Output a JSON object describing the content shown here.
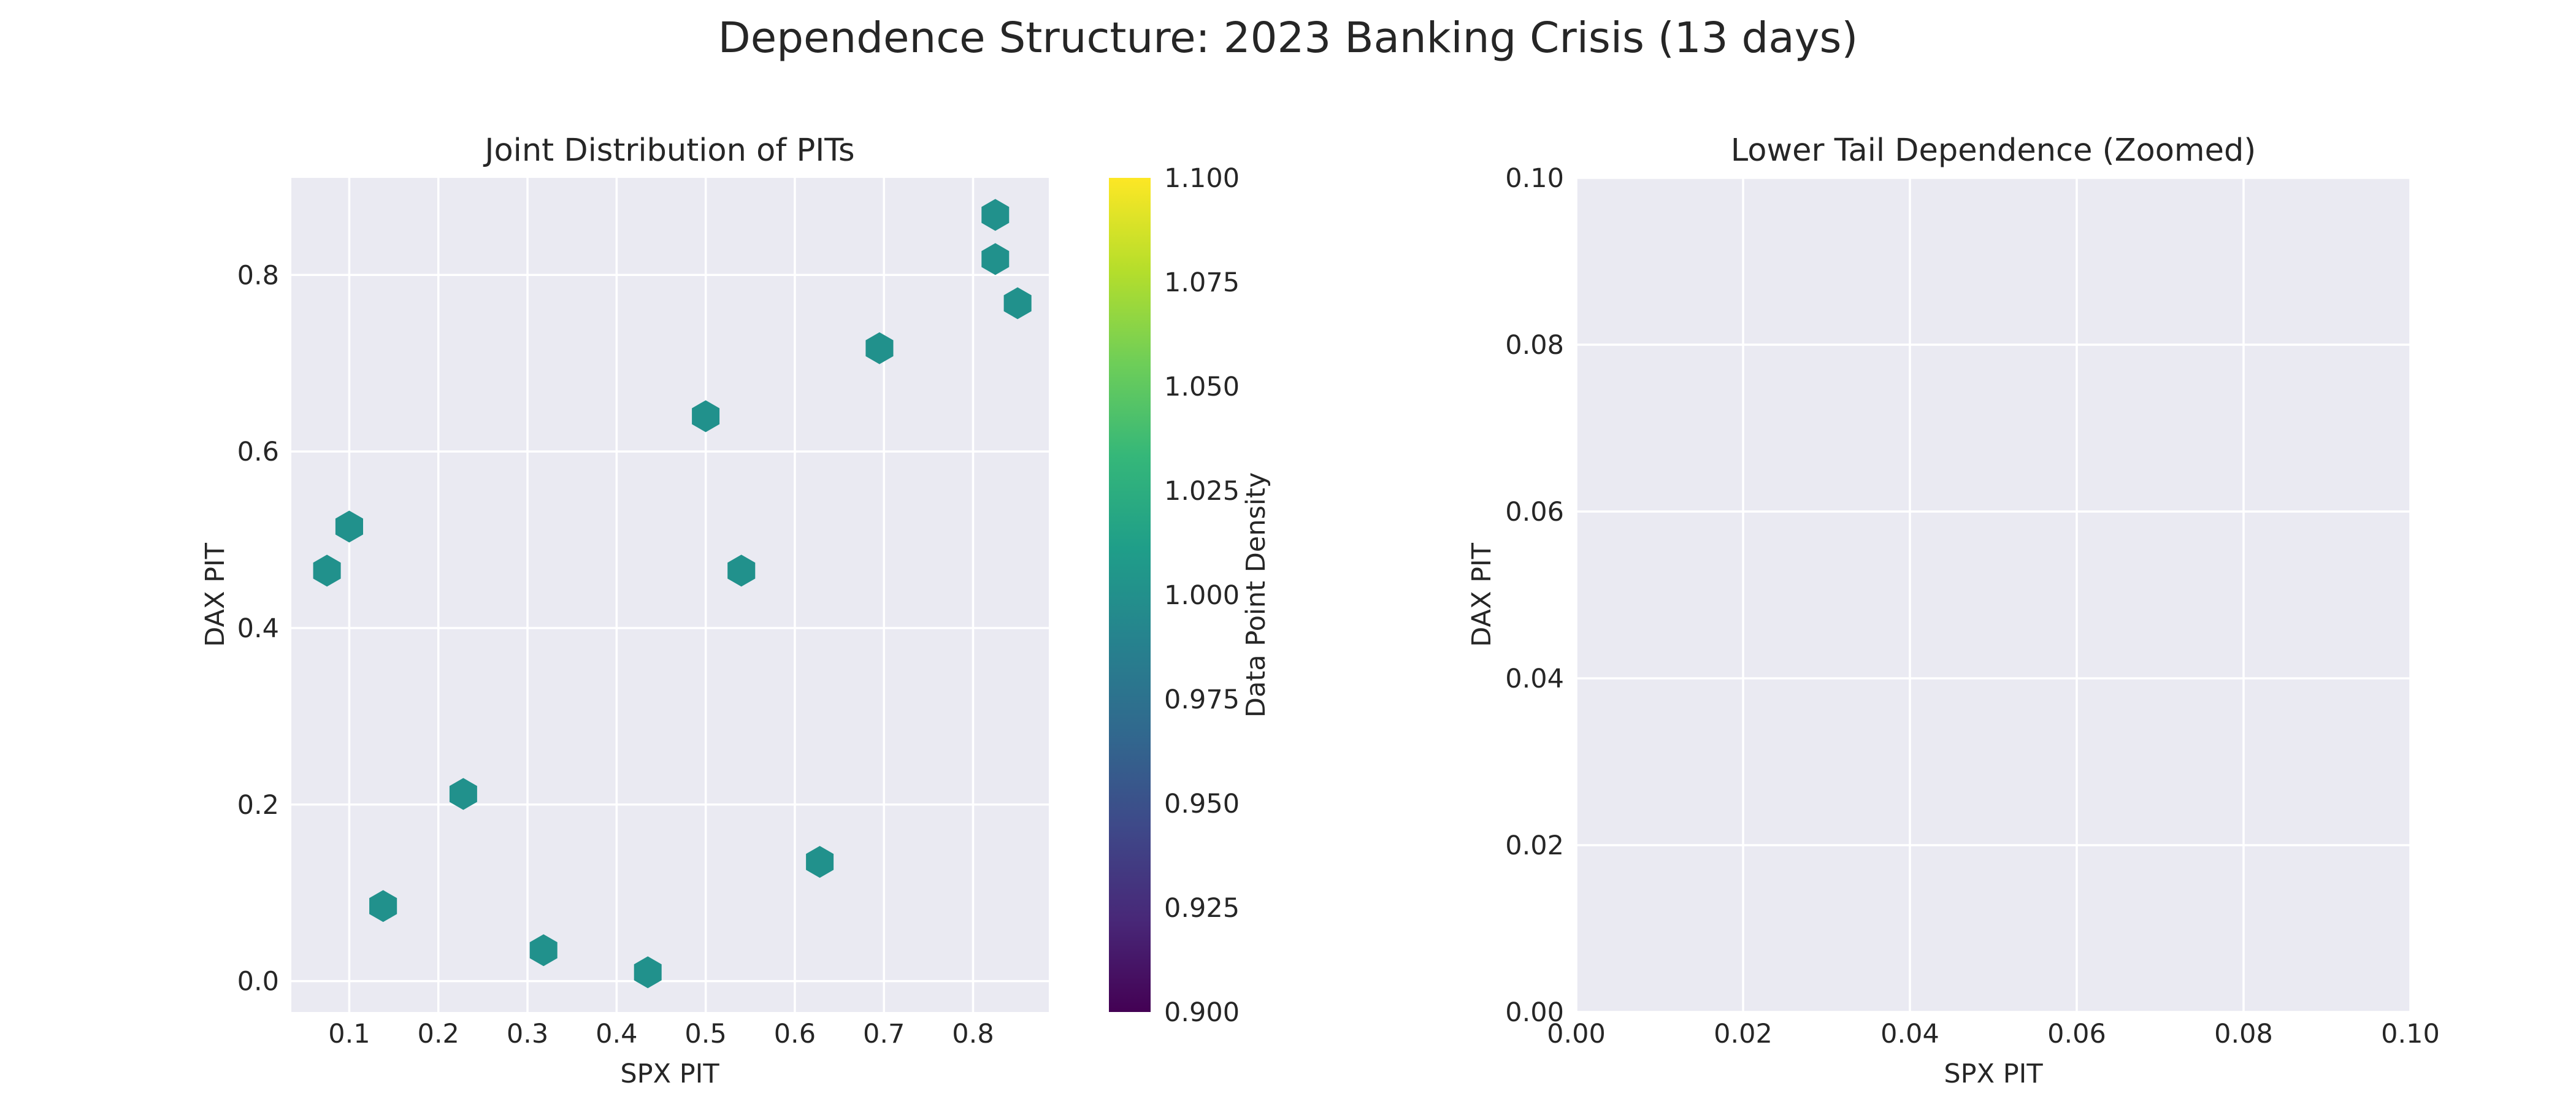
{
  "suptitle": "Dependence Structure: 2023 Banking Crisis (13 days)",
  "theme": {
    "panel_background": "#eaeaf2",
    "grid_color": "#ffffff",
    "text_color": "#262626"
  },
  "chart_data": [
    {
      "type": "hexbin",
      "title": "Joint Distribution of PITs",
      "xlabel": "SPX PIT",
      "ylabel": "DAX PIT",
      "xlim": [
        0.035,
        0.885
      ],
      "ylim": [
        -0.035,
        0.91
      ],
      "xticks": [
        0.1,
        0.2,
        0.3,
        0.4,
        0.5,
        0.6,
        0.7,
        0.8
      ],
      "xtick_labels": [
        "0.1",
        "0.2",
        "0.3",
        "0.4",
        "0.5",
        "0.6",
        "0.7",
        "0.8"
      ],
      "yticks": [
        0.0,
        0.2,
        0.4,
        0.6,
        0.8
      ],
      "ytick_labels": [
        "0.0",
        "0.2",
        "0.4",
        "0.6",
        "0.8"
      ],
      "grid": true,
      "point_color": "#21918c",
      "points": [
        {
          "x": 0.825,
          "y": 0.868
        },
        {
          "x": 0.825,
          "y": 0.818
        },
        {
          "x": 0.85,
          "y": 0.768
        },
        {
          "x": 0.695,
          "y": 0.717
        },
        {
          "x": 0.5,
          "y": 0.64
        },
        {
          "x": 0.1,
          "y": 0.515
        },
        {
          "x": 0.075,
          "y": 0.465
        },
        {
          "x": 0.54,
          "y": 0.465
        },
        {
          "x": 0.228,
          "y": 0.212
        },
        {
          "x": 0.628,
          "y": 0.135
        },
        {
          "x": 0.138,
          "y": 0.085
        },
        {
          "x": 0.318,
          "y": 0.035
        },
        {
          "x": 0.435,
          "y": 0.01
        }
      ],
      "colorbar": {
        "label": "Data Point Density",
        "colormap": "viridis",
        "colors": [
          "#440154",
          "#482878",
          "#3e4989",
          "#31688e",
          "#26828e",
          "#1f9e89",
          "#35b779",
          "#6ece58",
          "#b5de2b",
          "#fde725"
        ],
        "range": [
          0.9,
          1.1
        ],
        "ticks": [
          0.9,
          0.925,
          0.95,
          0.975,
          1.0,
          1.025,
          1.05,
          1.075,
          1.1
        ],
        "tick_labels": [
          "0.900",
          "0.925",
          "0.950",
          "0.975",
          "1.000",
          "1.025",
          "1.050",
          "1.075",
          "1.100"
        ]
      }
    },
    {
      "type": "scatter",
      "title": "Lower Tail Dependence (Zoomed)",
      "xlabel": "SPX PIT",
      "ylabel": "DAX PIT",
      "xlim": [
        0.0,
        0.1
      ],
      "ylim": [
        0.0,
        0.1
      ],
      "xticks": [
        0.0,
        0.02,
        0.04,
        0.06,
        0.08,
        0.1
      ],
      "xtick_labels": [
        "0.00",
        "0.02",
        "0.04",
        "0.06",
        "0.08",
        "0.10"
      ],
      "yticks": [
        0.0,
        0.02,
        0.04,
        0.06,
        0.08,
        0.1
      ],
      "ytick_labels": [
        "0.00",
        "0.02",
        "0.04",
        "0.06",
        "0.08",
        "0.10"
      ],
      "grid": true,
      "points": []
    }
  ]
}
